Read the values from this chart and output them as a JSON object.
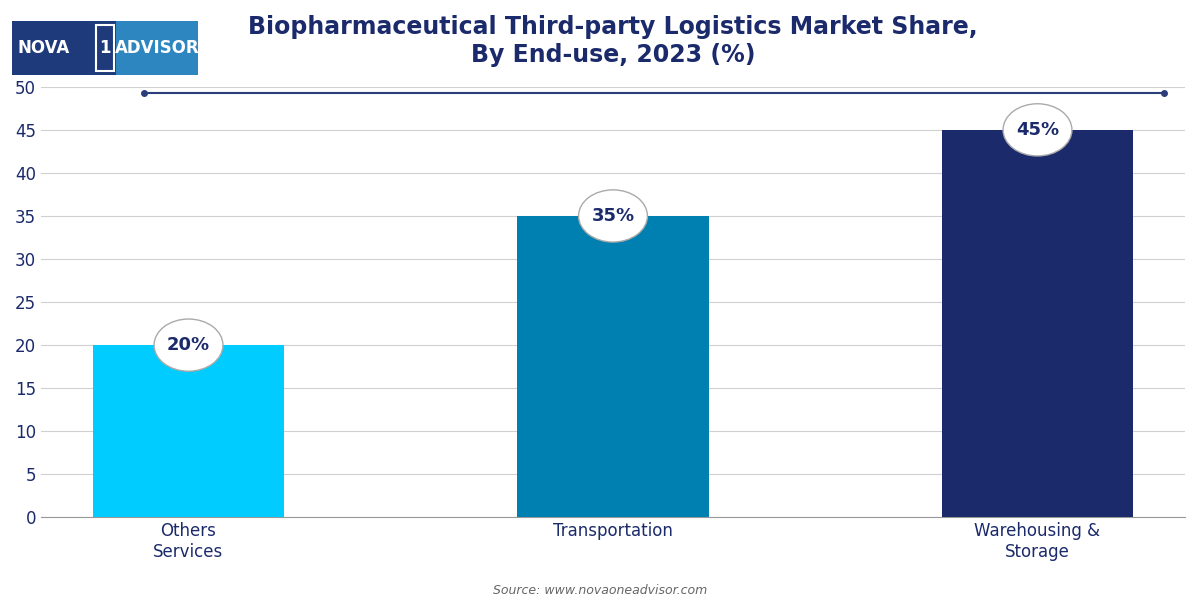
{
  "title": "Biopharmaceutical Third-party Logistics Market Share,\nBy End-use, 2023 (%)",
  "categories": [
    "Others\nServices",
    "Transportation",
    "Warehousing &\nStorage"
  ],
  "values": [
    20,
    35,
    45
  ],
  "labels": [
    "20%",
    "35%",
    "45%"
  ],
  "bar_colors": [
    "#00CCFF",
    "#0080B0",
    "#1B2A6B"
  ],
  "ylim": [
    0,
    50
  ],
  "yticks": [
    0,
    5,
    10,
    15,
    20,
    25,
    30,
    35,
    40,
    45,
    50
  ],
  "title_color": "#1B2A6B",
  "tick_color": "#1B2A6B",
  "source_text": "Source: www.novaoneadvisor.com",
  "background_color": "#FFFFFF",
  "grid_color": "#D0D0D0",
  "label_fontsize": 13,
  "title_fontsize": 17,
  "bar_width": 0.45,
  "logo_navy": "#1E3A7B",
  "logo_blue": "#2E86C1",
  "line_color": "#2C3E7A"
}
